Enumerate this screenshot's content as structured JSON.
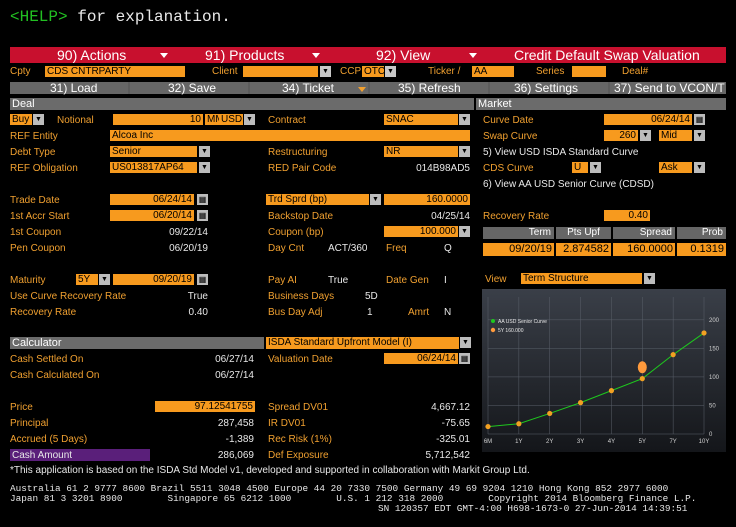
{
  "help": {
    "tag": "<HELP>",
    "text": " for explanation."
  },
  "menu": {
    "actions": "90) Actions",
    "products": "91) Products",
    "view": "92) View",
    "title": "Credit Default Swap Valuation"
  },
  "topfields": {
    "cpty_label": "Cpty",
    "cpty_value": "CDS CNTRPARTY",
    "client_label": "Client",
    "client_value": "",
    "ccp_label": "CCP",
    "ccp_value": "OTC",
    "ticker_label": "Ticker /",
    "ticker_value": "AA",
    "series_label": "Series",
    "series_value": "",
    "deal_label": "Deal#",
    "deal_value": ""
  },
  "toolbar": {
    "load": "31) Load",
    "save": "32) Save",
    "ticket": "34) Ticket",
    "refresh": "35) Refresh",
    "settings": "36) Settings",
    "send": "37) Send to VCON/T"
  },
  "deal": {
    "header": "Deal",
    "side": "Buy",
    "notional_label": "Notional",
    "notional_value": "10",
    "notional_unit": "MM",
    "currency": "USD",
    "ref_entity_label": "REF Entity",
    "ref_entity_value": "Alcoa Inc",
    "debt_type_label": "Debt Type",
    "debt_type_value": "Senior",
    "ref_obligation_label": "REF Obligation",
    "ref_obligation_value": "US013817AP64",
    "trade_date_label": "Trade Date",
    "trade_date_value": "06/24/14",
    "accr_start_label": "1st Accr Start",
    "accr_start_value": "06/20/14",
    "first_coupon_label": "1st Coupon",
    "first_coupon_value": "09/22/14",
    "pen_coupon_label": "Pen Coupon",
    "pen_coupon_value": "06/20/19",
    "maturity_label": "Maturity",
    "maturity_tenor": "5Y",
    "maturity_value": "09/20/19",
    "use_curve_label": "Use Curve Recovery Rate",
    "use_curve_value": "True",
    "recovery_label": "Recovery Rate",
    "recovery_value": "0.40",
    "contract_label": "Contract",
    "contract_value": "SNAC",
    "restructuring_label": "Restructuring",
    "restructuring_value": "NR",
    "red_pair_label": "RED Pair Code",
    "red_pair_value": "014B98AD5",
    "trd_sprd_label": "Trd Sprd (bp)",
    "trd_sprd_value": "160.0000",
    "backstop_label": "Backstop Date",
    "backstop_value": "04/25/14",
    "coupon_label": "Coupon (bp)",
    "coupon_value": "100.000",
    "daycnt_label": "Day Cnt",
    "daycnt_value": "ACT/360",
    "freq_label": "Freq",
    "freq_value": "Q",
    "payai_label": "Pay AI",
    "payai_value": "True",
    "dategen_label": "Date Gen",
    "dategen_value": "I",
    "busdays_label": "Business Days",
    "busdays_value": "5D",
    "busdayadj_label": "Bus Day Adj",
    "busdayadj_value": "1",
    "amrt_label": "Amrt",
    "amrt_value": "N"
  },
  "calculator": {
    "header": "Calculator",
    "model": "ISDA Standard Upfront Model (I)",
    "cash_settled_label": "Cash Settled On",
    "cash_settled_value": "06/27/14",
    "cash_calc_label": "Cash Calculated On",
    "cash_calc_value": "06/27/14",
    "valuation_label": "Valuation Date",
    "valuation_value": "06/24/14",
    "price_label": "Price",
    "price_value": "97.12541755",
    "principal_label": "Principal",
    "principal_value": "287,458",
    "accrued_label": "Accrued (5 Days)",
    "accrued_value": "-1,389",
    "cash_amount_label": "Cash Amount",
    "cash_amount_value": "286,069",
    "spread_dv01_label": "Spread DV01",
    "spread_dv01_value": "4,667.12",
    "ir_dv01_label": "IR DV01",
    "ir_dv01_value": "-75.65",
    "rec_risk_label": "Rec Risk (1%)",
    "rec_risk_value": "-325.01",
    "def_exposure_label": "Def Exposure",
    "def_exposure_value": "5,712,542"
  },
  "market": {
    "header": "Market",
    "curve_date_label": "Curve Date",
    "curve_date_value": "06/24/14",
    "swap_curve_label": "Swap Curve",
    "swap_curve_value": "260",
    "swap_curve_side": "Mid",
    "isda_curve_link": "5) View USD ISDA Standard Curve",
    "cds_curve_label": "CDS Curve",
    "cds_curve_value": "U",
    "cds_curve_side": "Ask",
    "senior_curve_link": "6) View AA USD Senior Curve (CDSD)",
    "recovery_label": "Recovery Rate",
    "recovery_value": "0.40",
    "table_headers": [
      "Term",
      "Pts Upf",
      "Spread",
      "Prob"
    ],
    "table_row": [
      "09/20/19",
      "2.874582",
      "160.0000",
      "0.1319"
    ],
    "view_label": "View",
    "view_value": "Term Structure"
  },
  "chart_data": {
    "type": "line",
    "x": [
      "6M",
      "1Y",
      "2Y",
      "3Y",
      "4Y",
      "5Y",
      "7Y",
      "10Y"
    ],
    "series": [
      {
        "name": "AA USD Senior Curve",
        "values": [
          13,
          18,
          36,
          55,
          76,
          97,
          139,
          177
        ]
      }
    ],
    "points": [
      {
        "name": "5Y 160.000",
        "x": "5Y",
        "y": 117
      }
    ],
    "ylim": [
      0,
      240
    ],
    "yticks": [
      0,
      50,
      100,
      150,
      200
    ],
    "colors": {
      "series": "#1ec81e",
      "marker": "#f2a122",
      "point": "#ff9a3c"
    },
    "legend": "top-left"
  },
  "footer": {
    "note": "*This application is based on the ISDA Std Model v1, developed and supported in collaboration with Markit Group Ltd.",
    "line1": "Australia 61 2 9777 8600 Brazil 5511 3048 4500 Europe 44 20 7330 7500 Germany 49 69 9204 1210 Hong Kong 852 2977 6000",
    "line2": "Japan 81 3 3201 8900        Singapore 65 6212 1000        U.S. 1 212 318 2000        Copyright 2014 Bloomberg Finance L.P.",
    "line3": "SN 120357 EDT  GMT-4:00 H698-1673-0 27-Jun-2014 14:39:51"
  }
}
